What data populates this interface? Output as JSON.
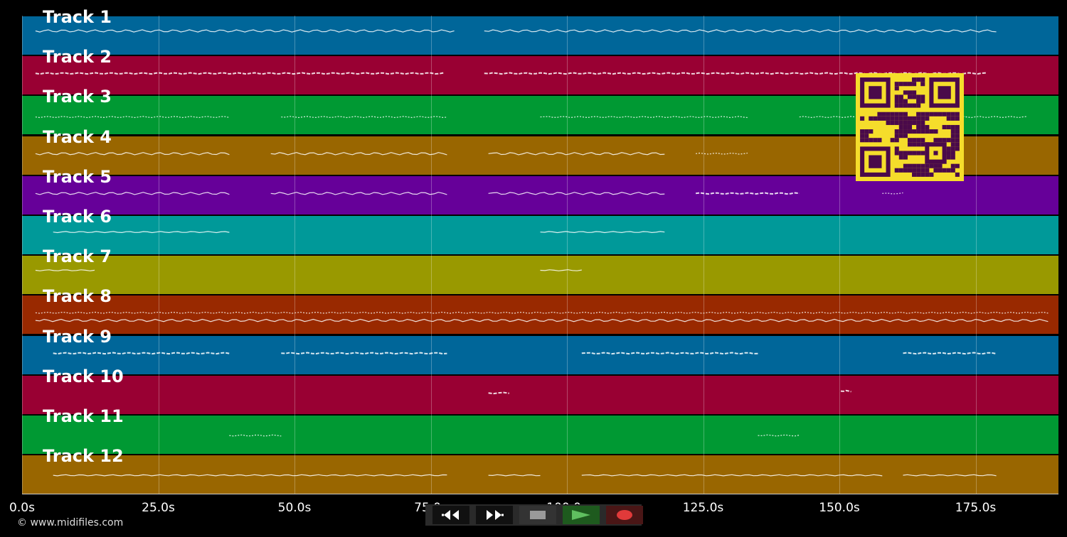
{
  "app": {
    "credit": "© www.midifiles.com"
  },
  "timeline": {
    "tick_labels": [
      "0.0s",
      "25.0s",
      "50.0s",
      "75.0s",
      "100.0s",
      "125.0s",
      "150.0s",
      "175.0s"
    ]
  },
  "tracks": [
    {
      "label": "Track 1",
      "color": "#006699"
    },
    {
      "label": "Track 2",
      "color": "#990033"
    },
    {
      "label": "Track 3",
      "color": "#009933"
    },
    {
      "label": "Track 4",
      "color": "#996600"
    },
    {
      "label": "Track 5",
      "color": "#660099"
    },
    {
      "label": "Track 6",
      "color": "#009999"
    },
    {
      "label": "Track 7",
      "color": "#999900"
    },
    {
      "label": "Track 8",
      "color": "#992900"
    },
    {
      "label": "Track 9",
      "color": "#006699"
    },
    {
      "label": "Track 10",
      "color": "#990033"
    },
    {
      "label": "Track 11",
      "color": "#009933"
    },
    {
      "label": "Track 12",
      "color": "#996600"
    }
  ],
  "controls": {
    "rewind": "rewind-icon",
    "fast_forward": "fast-forward-icon",
    "stop": "stop-icon",
    "play": "play-icon",
    "record": "record-icon",
    "colors": {
      "play": "#5fbf5f",
      "record": "#e03a3a",
      "stop": "#9a9a9a"
    }
  },
  "overlay": {
    "qr_colors": {
      "fg": "#4a0a4a",
      "bg": "#f5dd2b"
    }
  }
}
